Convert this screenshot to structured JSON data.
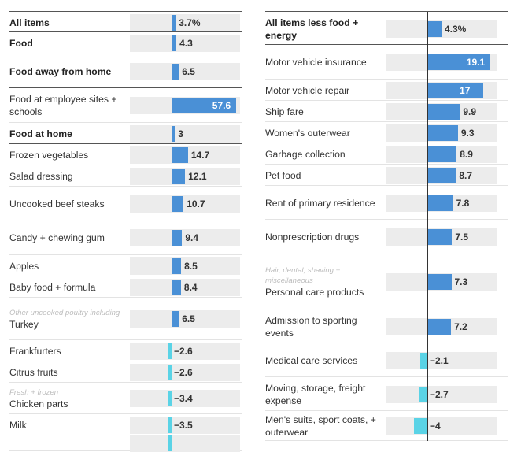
{
  "colors": {
    "positive": "#4a90d6",
    "negative": "#5ad3e6",
    "track": "#ececec"
  },
  "chart_data": [
    {
      "type": "bar",
      "orientation": "horizontal",
      "title": "",
      "xlim": [
        -4,
        60
      ],
      "rows": [
        {
          "label": "All items",
          "value": 3.7,
          "value_label": "3.7%",
          "bold": true
        },
        {
          "label": "Food",
          "value": 4.3,
          "value_label": "4.3",
          "bold": true
        },
        {
          "label": "Food away from home",
          "value": 6.5,
          "value_label": "6.5",
          "bold": true
        },
        {
          "label": "Food at employee sites + schools",
          "value": 57.6,
          "value_label": "57.6",
          "bold": false
        },
        {
          "label": "Food at home",
          "value": 3,
          "value_label": "3",
          "bold": true
        },
        {
          "label": "Frozen vegetables",
          "value": 14.7,
          "value_label": "14.7",
          "bold": false
        },
        {
          "label": "Salad dressing",
          "value": 12.1,
          "value_label": "12.1",
          "bold": false
        },
        {
          "label": "Uncooked beef steaks",
          "value": 10.7,
          "value_label": "10.7",
          "bold": false
        },
        {
          "label": "Candy + chewing gum",
          "value": 9.4,
          "value_label": "9.4",
          "bold": false
        },
        {
          "label": "Apples",
          "value": 8.5,
          "value_label": "8.5",
          "bold": false
        },
        {
          "label": "Baby food + formula",
          "value": 8.4,
          "value_label": "8.4",
          "bold": false
        },
        {
          "label": "Turkey",
          "sub": "Other uncooked poultry including",
          "value": 6.5,
          "value_label": "6.5",
          "bold": false
        },
        {
          "label": "Frankfurters",
          "value": -2.6,
          "value_label": "-2.6",
          "bold": false
        },
        {
          "label": "Citrus fruits",
          "value": -2.6,
          "value_label": "-2.6",
          "bold": false
        },
        {
          "label": "Chicken parts",
          "sub": "Fresh + frozen",
          "value": -3.4,
          "value_label": "-3.4",
          "bold": false
        },
        {
          "label": "Milk",
          "value": -3.5,
          "value_label": "-3.5",
          "bold": false
        },
        {
          "label": "",
          "value": -3.6,
          "value_label": "",
          "bold": false
        }
      ]
    },
    {
      "type": "bar",
      "orientation": "horizontal",
      "title": "",
      "xlim": [
        -4,
        20
      ],
      "rows": [
        {
          "label": "All items less food + energy",
          "value": 4.3,
          "value_label": "4.3%",
          "bold": true
        },
        {
          "label": "Motor vehicle insurance",
          "value": 19.1,
          "value_label": "19.1",
          "bold": false
        },
        {
          "label": "Motor vehicle repair",
          "value": 17,
          "value_label": "17",
          "bold": false
        },
        {
          "label": "Ship fare",
          "value": 9.9,
          "value_label": "9.9",
          "bold": false
        },
        {
          "label": "Women's outerwear",
          "value": 9.3,
          "value_label": "9.3",
          "bold": false
        },
        {
          "label": "Garbage collection",
          "value": 8.9,
          "value_label": "8.9",
          "bold": false
        },
        {
          "label": "Pet food",
          "value": 8.7,
          "value_label": "8.7",
          "bold": false
        },
        {
          "label": "Rent of primary residence",
          "value": 7.8,
          "value_label": "7.8",
          "bold": false
        },
        {
          "label": "Nonprescription drugs",
          "value": 7.5,
          "value_label": "7.5",
          "bold": false
        },
        {
          "label": "Personal care products",
          "sub": "Hair, dental, shaving + miscellaneous",
          "value": 7.3,
          "value_label": "7.3",
          "bold": false
        },
        {
          "label": "Admission to sporting events",
          "value": 7.2,
          "value_label": "7.2",
          "bold": false
        },
        {
          "label": "Medical care services",
          "value": -2.1,
          "value_label": "-2.1",
          "bold": false
        },
        {
          "label": "Moving, storage, freight expense",
          "value": -2.7,
          "value_label": "-2.7",
          "bold": false
        },
        {
          "label": "Men's suits, sport coats, + outerwear",
          "value": -4,
          "value_label": "-4",
          "bold": false
        }
      ]
    }
  ]
}
